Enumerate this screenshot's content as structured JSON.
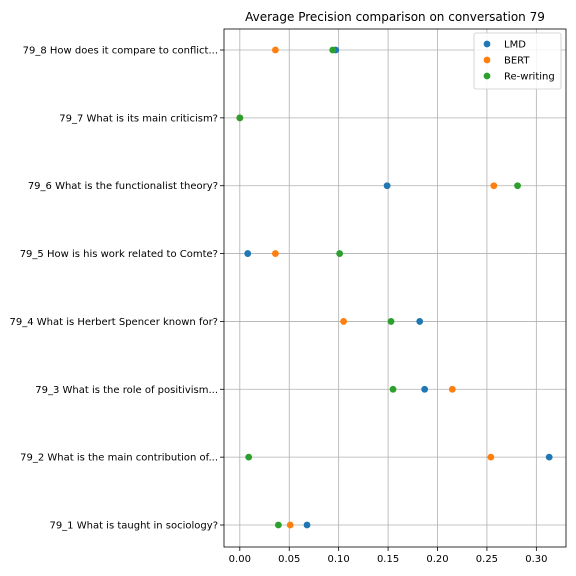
{
  "chart_data": {
    "type": "scatter",
    "title": "Average Precision comparison on conversation 79",
    "xlabel": "",
    "ylabel": "",
    "xlim": [
      -0.016,
      0.33
    ],
    "x_ticks": [
      0.0,
      0.05,
      0.1,
      0.15,
      0.2,
      0.25,
      0.3
    ],
    "x_tick_labels": [
      "0.00",
      "0.05",
      "0.10",
      "0.15",
      "0.20",
      "0.25",
      "0.30"
    ],
    "categories": [
      "79_1 What is taught in sociology?",
      "79_2 What is the main contribution of...",
      "79_3 What is the role of positivism...",
      "79_4 What is Herbert Spencer known for?",
      "79_5 How is his work related to Comte?",
      "79_6 What is the functionalist theory?",
      "79_7 What is its main criticism?",
      "79_8 How does it compare to conflict..."
    ],
    "grid": true,
    "legend_position": "top-right",
    "series": [
      {
        "name": "LMD",
        "color": "#1f77b4",
        "values": [
          0.068,
          0.313,
          0.187,
          0.182,
          0.008,
          0.149,
          0.0,
          0.097
        ]
      },
      {
        "name": "BERT",
        "color": "#ff7f0e",
        "values": [
          0.051,
          0.254,
          0.215,
          0.105,
          0.036,
          0.257,
          0.0,
          0.036
        ]
      },
      {
        "name": "Re-writing",
        "color": "#2ca02c",
        "values": [
          0.039,
          0.009,
          0.155,
          0.153,
          0.101,
          0.281,
          0.0,
          0.094
        ]
      }
    ]
  }
}
